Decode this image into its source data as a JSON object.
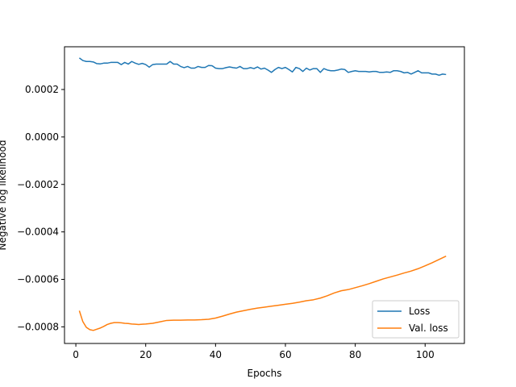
{
  "chart_data": {
    "type": "line",
    "title": "",
    "xlabel": "Epochs",
    "ylabel": "Negative log likelihood",
    "xlim": [
      -3.25,
      111.25
    ],
    "ylim": [
      -0.00087,
      0.00038
    ],
    "grid": false,
    "legend_position": "lower-right",
    "x_ticks": [
      {
        "value": 0,
        "label": "0"
      },
      {
        "value": 20,
        "label": "20"
      },
      {
        "value": 40,
        "label": "40"
      },
      {
        "value": 60,
        "label": "60"
      },
      {
        "value": 80,
        "label": "80"
      },
      {
        "value": 100,
        "label": "100"
      }
    ],
    "y_ticks": [
      {
        "value": 0.0002,
        "label": "0.0002"
      },
      {
        "value": 0.0,
        "label": "0.0000"
      },
      {
        "value": -0.0002,
        "label": "−0.0002"
      },
      {
        "value": -0.0004,
        "label": "−0.0004"
      },
      {
        "value": -0.0006,
        "label": "−0.0006"
      },
      {
        "value": -0.0008,
        "label": "−0.0008"
      }
    ],
    "series": [
      {
        "name": "Loss",
        "color": "#1f77b4",
        "x": [
          1,
          2,
          3,
          4,
          5,
          6,
          7,
          8,
          9,
          10,
          11,
          12,
          13,
          14,
          15,
          16,
          17,
          18,
          19,
          20,
          21,
          22,
          23,
          24,
          25,
          26,
          27,
          28,
          29,
          30,
          31,
          32,
          33,
          34,
          35,
          36,
          37,
          38,
          39,
          40,
          41,
          42,
          43,
          44,
          45,
          46,
          47,
          48,
          49,
          50,
          51,
          52,
          53,
          54,
          55,
          56,
          57,
          58,
          59,
          60,
          61,
          62,
          63,
          64,
          65,
          66,
          67,
          68,
          69,
          70,
          71,
          72,
          73,
          74,
          75,
          76,
          77,
          78,
          79,
          80,
          81,
          82,
          83,
          84,
          85,
          86,
          87,
          88,
          89,
          90,
          91,
          92,
          93,
          94,
          95,
          96,
          97,
          98,
          99,
          100,
          101,
          102,
          103,
          104,
          105,
          106
        ],
        "y": [
          0.000333,
          0.000322,
          0.000318,
          0.000318,
          0.000316,
          0.000309,
          0.000308,
          0.000311,
          0.000311,
          0.000314,
          0.000314,
          0.000314,
          0.000305,
          0.000314,
          0.000307,
          0.000318,
          0.000311,
          0.000306,
          0.00031,
          0.000305,
          0.000294,
          0.000305,
          0.000307,
          0.000307,
          0.000307,
          0.000307,
          0.000318,
          0.000307,
          0.000307,
          0.000297,
          0.000292,
          0.000297,
          0.00029,
          0.00029,
          0.000297,
          0.000293,
          0.000293,
          0.000301,
          0.0003,
          0.00029,
          0.000288,
          0.000288,
          0.000292,
          0.000295,
          0.000292,
          0.00029,
          0.000297,
          0.000288,
          0.000288,
          0.000292,
          0.000288,
          0.000295,
          0.000286,
          0.00029,
          0.000282,
          0.000272,
          0.000284,
          0.000293,
          0.000288,
          0.000293,
          0.000284,
          0.000274,
          0.000293,
          0.000288,
          0.000276,
          0.00029,
          0.000282,
          0.000288,
          0.000288,
          0.000272,
          0.000288,
          0.000282,
          0.000279,
          0.000279,
          0.000282,
          0.000286,
          0.000284,
          0.000272,
          0.000276,
          0.000279,
          0.000276,
          0.000276,
          0.000276,
          0.000274,
          0.000276,
          0.000276,
          0.000272,
          0.000272,
          0.000274,
          0.000272,
          0.000279,
          0.000279,
          0.000276,
          0.00027,
          0.000272,
          0.000265,
          0.000272,
          0.000279,
          0.00027,
          0.00027,
          0.00027,
          0.000265,
          0.000265,
          0.00026,
          0.000265,
          0.000263
        ]
      },
      {
        "name": "Val. loss",
        "color": "#ff7f0e",
        "x": [
          1,
          2,
          3,
          4,
          5,
          6,
          7,
          8,
          9,
          10,
          11,
          12,
          13,
          14,
          15,
          16,
          17,
          18,
          19,
          20,
          22,
          24,
          26,
          28,
          30,
          32,
          34,
          36,
          38,
          40,
          42,
          44,
          46,
          48,
          50,
          52,
          54,
          56,
          58,
          60,
          62,
          64,
          66,
          68,
          70,
          72,
          74,
          76,
          78,
          80,
          82,
          84,
          86,
          88,
          90,
          92,
          94,
          96,
          98,
          100,
          102,
          104,
          106
        ],
        "y": [
          -0.000732,
          -0.000778,
          -0.000802,
          -0.000812,
          -0.000815,
          -0.00081,
          -0.000805,
          -0.000798,
          -0.00079,
          -0.000785,
          -0.000782,
          -0.000782,
          -0.000783,
          -0.000785,
          -0.000786,
          -0.000788,
          -0.000789,
          -0.00079,
          -0.000789,
          -0.000788,
          -0.000785,
          -0.000779,
          -0.000773,
          -0.000772,
          -0.000772,
          -0.000771,
          -0.000771,
          -0.00077,
          -0.000768,
          -0.000763,
          -0.000755,
          -0.000746,
          -0.000738,
          -0.000732,
          -0.000726,
          -0.000721,
          -0.000717,
          -0.000713,
          -0.000709,
          -0.000705,
          -0.000701,
          -0.000696,
          -0.00069,
          -0.000686,
          -0.000679,
          -0.000669,
          -0.000657,
          -0.000648,
          -0.000643,
          -0.000635,
          -0.000627,
          -0.000618,
          -0.000608,
          -0.000598,
          -0.00059,
          -0.000582,
          -0.000573,
          -0.000565,
          -0.000555,
          -0.000543,
          -0.00053,
          -0.000516,
          -0.000502
        ]
      }
    ]
  }
}
